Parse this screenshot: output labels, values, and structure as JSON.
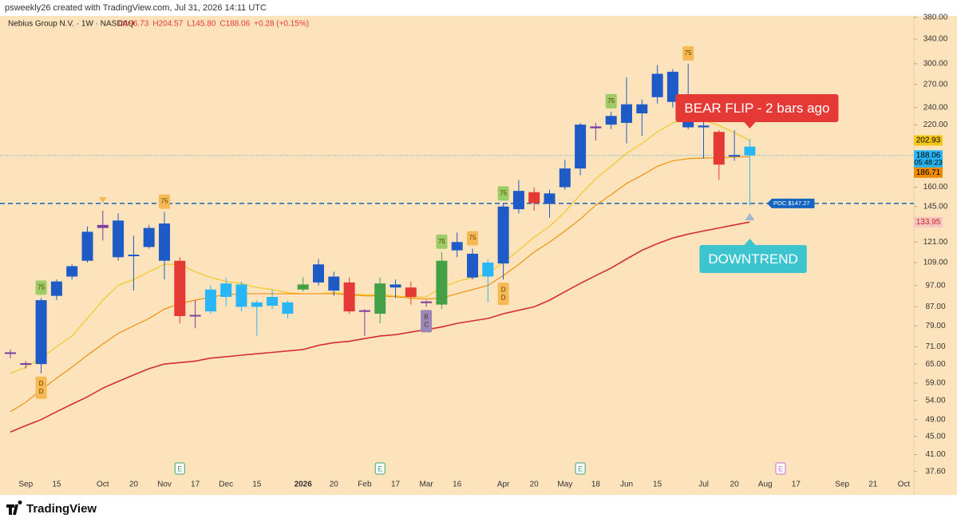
{
  "chart_data": {
    "type": "candlestick",
    "credit": "psweekly26 created with TradingView.com, Jul 31, 2026 14:11 UTC",
    "header": {
      "symbol": "Nebius Group N.V. · 1W · NASDAQ",
      "ohlc": [
        "O196.73",
        "H204.57",
        "L145.80",
        "C188.06",
        "+0.28 (+0.15%)"
      ]
    },
    "logo": "TradingView",
    "log_scale": true,
    "ylim": [
      34.5,
      415
    ],
    "yticks": [
      {
        "value": 380,
        "label": "380.00"
      },
      {
        "value": 340,
        "label": "340.00"
      },
      {
        "value": 300,
        "label": "300.00"
      },
      {
        "value": 270,
        "label": "270.00"
      },
      {
        "value": 240,
        "label": "240.00"
      },
      {
        "value": 220,
        "label": "220.00"
      },
      {
        "value": 160,
        "label": "160.00"
      },
      {
        "value": 145,
        "label": "145.00"
      },
      {
        "value": 121,
        "label": "121.00"
      },
      {
        "value": 109,
        "label": "109.00"
      },
      {
        "value": 97,
        "label": "97.00"
      },
      {
        "value": 87,
        "label": "87.00"
      },
      {
        "value": 79,
        "label": "79.00"
      },
      {
        "value": 71,
        "label": "71.00"
      },
      {
        "value": 65,
        "label": "65.00"
      },
      {
        "value": 59,
        "label": "59.00"
      },
      {
        "value": 54,
        "label": "54.00"
      },
      {
        "value": 49,
        "label": "49.00"
      },
      {
        "value": 45,
        "label": "45.00"
      },
      {
        "value": 41,
        "label": "41.00"
      },
      {
        "value": 37.6,
        "label": "37.60"
      }
    ],
    "categories": [
      null,
      "Sep",
      null,
      "15",
      null,
      null,
      "Oct",
      null,
      "20",
      null,
      "Nov",
      null,
      "17",
      null,
      "Dec",
      null,
      "15",
      null,
      null,
      "2026",
      null,
      "20",
      null,
      "Feb",
      null,
      "17",
      null,
      "Mar",
      null,
      "16",
      null,
      null,
      "Apr",
      null,
      "20",
      null,
      "May",
      null,
      "18",
      null,
      "Jun",
      null,
      "15",
      null,
      null,
      "Jul",
      null,
      "20",
      null,
      "Aug",
      null,
      "17",
      null,
      null,
      "Sep",
      null,
      "21",
      null,
      "Oct",
      null
    ],
    "candles": [
      {
        "open": 68.5,
        "high": 70,
        "low": 67,
        "close": 69,
        "color": "#7b3fa0"
      },
      {
        "open": 65,
        "high": 66,
        "low": 63.5,
        "close": 65.3,
        "color": "#7b3fa0"
      },
      {
        "open": 65,
        "high": 91,
        "low": 62,
        "close": 90,
        "color": "#1e5bc6"
      },
      {
        "open": 92,
        "high": 100,
        "low": 90,
        "close": 99,
        "color": "#1e5bc6"
      },
      {
        "open": 101.5,
        "high": 108,
        "low": 100,
        "close": 107,
        "color": "#1e5bc6"
      },
      {
        "open": 110,
        "high": 131,
        "low": 109,
        "close": 127.5,
        "color": "#1e5bc6"
      },
      {
        "open": 130,
        "high": 142,
        "low": 122,
        "close": 132,
        "color": "#7b3fa0"
      },
      {
        "open": 135,
        "high": 140,
        "low": 110,
        "close": 112,
        "color": "#1e5bc6"
      },
      {
        "open": 113,
        "high": 125,
        "low": 94.5,
        "close": 113.5,
        "color": "#1e5bc6"
      },
      {
        "open": 118,
        "high": 132,
        "low": 117,
        "close": 130,
        "color": "#1e5bc6"
      },
      {
        "open": 133,
        "high": 141,
        "low": 100,
        "close": 110,
        "color": "#1e5bc6"
      },
      {
        "open": 110,
        "high": 112,
        "low": 80,
        "close": 83,
        "color": "#e53935"
      },
      {
        "open": 83,
        "high": 90,
        "low": 78,
        "close": 83.5,
        "color": "#7b3fa0"
      },
      {
        "open": 85,
        "high": 97,
        "low": 84,
        "close": 95,
        "color": "#29b6f6"
      },
      {
        "open": 91.5,
        "high": 101,
        "low": 87,
        "close": 98,
        "color": "#29b6f6"
      },
      {
        "open": 97.5,
        "high": 99,
        "low": 85,
        "close": 87,
        "color": "#29b6f6"
      },
      {
        "open": 89,
        "high": 90,
        "low": 75,
        "close": 87,
        "color": "#29b6f6"
      },
      {
        "open": 87.5,
        "high": 95,
        "low": 86,
        "close": 91.5,
        "color": "#29b6f6"
      },
      {
        "open": 89,
        "high": 90,
        "low": 82,
        "close": 84,
        "color": "#29b6f6"
      },
      {
        "open": 95,
        "high": 101,
        "low": 94,
        "close": 97.5,
        "color": "#43a047"
      },
      {
        "open": 108,
        "high": 111,
        "low": 97,
        "close": 98.5,
        "color": "#1e5bc6"
      },
      {
        "open": 101.5,
        "high": 104,
        "low": 92,
        "close": 94.5,
        "color": "#1e5bc6"
      },
      {
        "open": 98.5,
        "high": 101,
        "low": 84,
        "close": 85,
        "color": "#e53935"
      },
      {
        "open": 85,
        "high": 86,
        "low": 75,
        "close": 85.5,
        "color": "#7b3fa0"
      },
      {
        "open": 84,
        "high": 101,
        "low": 80,
        "close": 98,
        "color": "#43a047"
      },
      {
        "open": 97.5,
        "high": 100,
        "low": 91,
        "close": 96,
        "color": "#1e5bc6"
      },
      {
        "open": 96,
        "high": 99,
        "low": 88,
        "close": 91.5,
        "color": "#e53935"
      },
      {
        "open": 89,
        "high": 90,
        "low": 87,
        "close": 89.4,
        "color": "#7b3fa0"
      },
      {
        "open": 88,
        "high": 115,
        "low": 86,
        "close": 110,
        "color": "#43a047"
      },
      {
        "open": 116,
        "high": 127,
        "low": 112,
        "close": 121,
        "color": "#1e5bc6"
      },
      {
        "open": 114,
        "high": 117,
        "low": 100,
        "close": 101,
        "color": "#1e5bc6"
      },
      {
        "open": 109,
        "high": 111,
        "low": 89,
        "close": 101.5,
        "color": "#29b6f6"
      },
      {
        "open": 108.5,
        "high": 147,
        "low": 100,
        "close": 145,
        "color": "#1e5bc6"
      },
      {
        "open": 143,
        "high": 166,
        "low": 140,
        "close": 157,
        "color": "#1e5bc6"
      },
      {
        "open": 156,
        "high": 160,
        "low": 142,
        "close": 147.5,
        "color": "#e53935"
      },
      {
        "open": 147,
        "high": 158,
        "low": 137,
        "close": 155,
        "color": "#1e5bc6"
      },
      {
        "open": 160,
        "high": 184,
        "low": 158,
        "close": 176,
        "color": "#1e5bc6"
      },
      {
        "open": 176,
        "high": 222,
        "low": 170,
        "close": 220,
        "color": "#1e5bc6"
      },
      {
        "open": 216,
        "high": 222,
        "low": 203,
        "close": 218,
        "color": "#7b3fa0"
      },
      {
        "open": 220,
        "high": 235,
        "low": 215,
        "close": 230,
        "color": "#1e5bc6"
      },
      {
        "open": 222,
        "high": 280,
        "low": 200,
        "close": 244,
        "color": "#1e5bc6"
      },
      {
        "open": 244,
        "high": 250,
        "low": 208,
        "close": 233,
        "color": "#1e5bc6"
      },
      {
        "open": 253,
        "high": 298,
        "low": 245,
        "close": 285,
        "color": "#1e5bc6"
      },
      {
        "open": 247,
        "high": 292,
        "low": 240,
        "close": 288,
        "color": "#1e5bc6"
      },
      {
        "open": 250,
        "high": 300,
        "low": 215,
        "close": 217,
        "color": "#1e5bc6"
      },
      {
        "open": 219,
        "high": 226,
        "low": 185,
        "close": 217,
        "color": "#1e5bc6"
      },
      {
        "open": 212,
        "high": 214,
        "low": 166,
        "close": 179.5,
        "color": "#e53935"
      },
      {
        "open": 188,
        "high": 214,
        "low": 183,
        "close": 188.5,
        "color": "#1e5bc6"
      },
      {
        "open": 196.73,
        "high": 204.57,
        "low": 145.8,
        "close": 188.06,
        "color": "#29b6f6"
      }
    ],
    "ma_lines": [
      {
        "color": "#f5c518",
        "values": [
          62,
          64,
          67,
          71,
          75,
          82,
          90,
          97,
          100,
          104,
          108,
          108,
          104,
          101,
          99,
          98,
          96,
          95,
          93.5,
          93,
          93,
          93.5,
          93,
          92.5,
          92.5,
          92,
          91.5,
          91.5,
          96,
          99,
          101,
          103,
          109,
          116,
          124,
          131,
          141,
          154,
          167,
          178,
          190,
          200,
          212,
          222,
          226,
          225,
          219,
          211,
          202.93
        ]
      },
      {
        "color": "#f08a00",
        "values": [
          51,
          53.5,
          57,
          60.5,
          64,
          68,
          72,
          76,
          79,
          82,
          86,
          88.5,
          90,
          91.5,
          92.5,
          93,
          93,
          93,
          93,
          93,
          93,
          93,
          92.5,
          92,
          92,
          91.5,
          91,
          90.5,
          91,
          93,
          95,
          97,
          102,
          108,
          115,
          121,
          128,
          136,
          146,
          154,
          163,
          170,
          178,
          183,
          185,
          185.5,
          186,
          186.5,
          186.71
        ]
      },
      {
        "color": "#d32f2f",
        "values": [
          46,
          47.5,
          49,
          51,
          53,
          55,
          57.5,
          59.5,
          61.5,
          63.5,
          65,
          65.5,
          66,
          67,
          67.5,
          68,
          68.5,
          69,
          69.5,
          70,
          71.5,
          72.5,
          73,
          74,
          75,
          75.5,
          76.5,
          77.5,
          78.5,
          80,
          81,
          82,
          84,
          85.5,
          87,
          90,
          94,
          98,
          102,
          106,
          111,
          116,
          120,
          123.5,
          126,
          128,
          130,
          132,
          133.95
        ]
      }
    ],
    "price_labels": [
      {
        "value": 202.93,
        "label": "202.93",
        "color": "#f5c518",
        "text_color": "#000"
      },
      {
        "value": 188.06,
        "label": "188.06",
        "sublabel": "05:48:23",
        "color": "#29b6f6",
        "text_color": "#000"
      },
      {
        "value": 186.71,
        "label": "186.71",
        "color": "#f08a00",
        "text_color": "#000"
      },
      {
        "value": 133.95,
        "label": "133.95",
        "color": "#f7c4c0",
        "text_color": "#c62828"
      }
    ],
    "poc": {
      "value": 147.27,
      "label": "POC $147.27",
      "color": "#1565c0"
    },
    "annotations": [
      {
        "text": "BEAR FLIP - 2 bars ago",
        "color": "#e53935",
        "candle": 48,
        "side": "above"
      },
      {
        "text": "DOWNTREND",
        "color": "#3cc4cf",
        "candle": 48,
        "side": "below"
      }
    ],
    "markers": [
      {
        "candle": 2,
        "side": "above",
        "text": [
          "75"
        ],
        "color": "#9ccc65"
      },
      {
        "candle": 2,
        "side": "below",
        "text": [
          "D",
          "D"
        ],
        "color": "#f7b955"
      },
      {
        "candle": 10,
        "side": "above",
        "text": [
          "75"
        ],
        "color": "#f7b955"
      },
      {
        "candle": 27,
        "side": "below",
        "text": [
          "B",
          "C"
        ],
        "color": "#9a86b8"
      },
      {
        "candle": 28,
        "side": "above",
        "text": [
          "75"
        ],
        "color": "#9ccc65"
      },
      {
        "candle": 30,
        "side": "above",
        "text": [
          "75"
        ],
        "color": "#f7b955"
      },
      {
        "candle": 32,
        "side": "above",
        "text": [
          "75"
        ],
        "color": "#9ccc65"
      },
      {
        "candle": 32,
        "side": "below",
        "text": [
          "D",
          "D"
        ],
        "color": "#f7b955"
      },
      {
        "candle": 39,
        "side": "above",
        "text": [
          "75"
        ],
        "color": "#9ccc65"
      },
      {
        "candle": 44,
        "side": "above",
        "text": [
          "75"
        ],
        "color": "#f7b955"
      }
    ],
    "earnings": [
      {
        "candle": 11,
        "label": "E"
      },
      {
        "candle": 24,
        "label": "E"
      },
      {
        "candle": 37,
        "label": "E"
      },
      {
        "candle": 50,
        "label": "E",
        "future": true
      }
    ]
  }
}
